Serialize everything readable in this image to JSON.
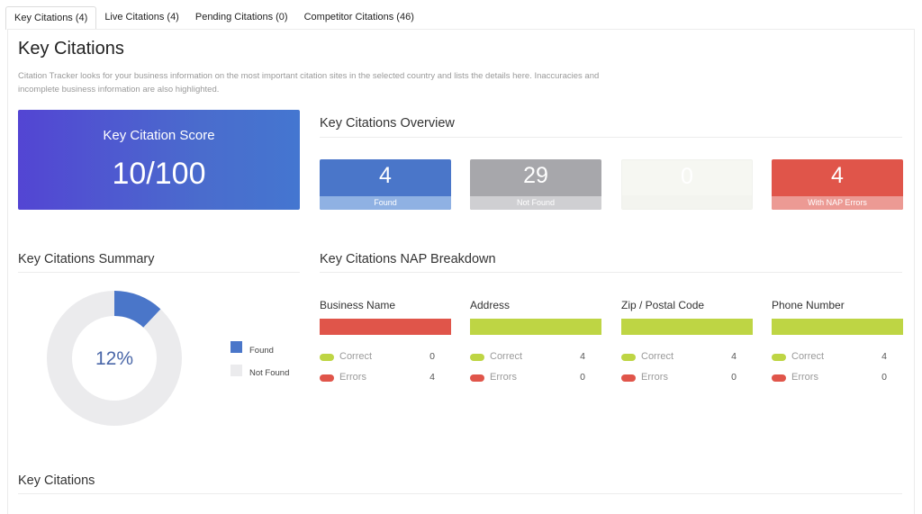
{
  "tabs": [
    {
      "label": "Key Citations (4)"
    },
    {
      "label": "Live Citations (4)"
    },
    {
      "label": "Pending Citations (0)"
    },
    {
      "label": "Competitor Citations (46)"
    }
  ],
  "page": {
    "title": "Key Citations",
    "description": "Citation Tracker looks for your business information on the most important citation sites in the selected country and lists the details here. Inaccuracies and incomplete business information are also highlighted."
  },
  "score": {
    "label": "Key Citation Score",
    "value": "10/100"
  },
  "overview": {
    "title": "Key Citations Overview",
    "stats": [
      {
        "value": "4",
        "label": "Found",
        "color": "#4a76c9",
        "label_color": "#8fb1e3"
      },
      {
        "value": "29",
        "label": "Not Found",
        "color": "#a7a7ab",
        "label_color": "#cfcfd2"
      },
      {
        "value": "0",
        "label": "",
        "color": "#f6f7f2",
        "label_color": "#f3f4ef"
      },
      {
        "value": "4",
        "label": "With NAP Errors",
        "color": "#e0554a",
        "label_color": "#ec9a94"
      }
    ]
  },
  "summary": {
    "title": "Key Citations Summary",
    "percent_label": "12%",
    "found_fraction": 0.12,
    "found_color": "#4a76c9",
    "notfound_color": "#ebebed",
    "legend": [
      {
        "label": "Found",
        "color": "#4a76c9"
      },
      {
        "label": "Not Found",
        "color": "#ebebed"
      }
    ]
  },
  "nap": {
    "title": "Key Citations NAP Breakdown",
    "correct_color": "#bed544",
    "error_color": "#e0554a",
    "columns": [
      {
        "label": "Business Name",
        "status": "error",
        "correct_label": "Correct",
        "correct": "0",
        "errors_label": "Errors",
        "errors": "4"
      },
      {
        "label": "Address",
        "status": "correct",
        "correct_label": "Correct",
        "correct": "4",
        "errors_label": "Errors",
        "errors": "0"
      },
      {
        "label": "Zip / Postal Code",
        "status": "correct",
        "correct_label": "Correct",
        "correct": "4",
        "errors_label": "Errors",
        "errors": "0"
      },
      {
        "label": "Phone Number",
        "status": "correct",
        "correct_label": "Correct",
        "correct": "4",
        "errors_label": "Errors",
        "errors": "0"
      }
    ]
  },
  "bottom_section": {
    "title": "Key Citations"
  }
}
